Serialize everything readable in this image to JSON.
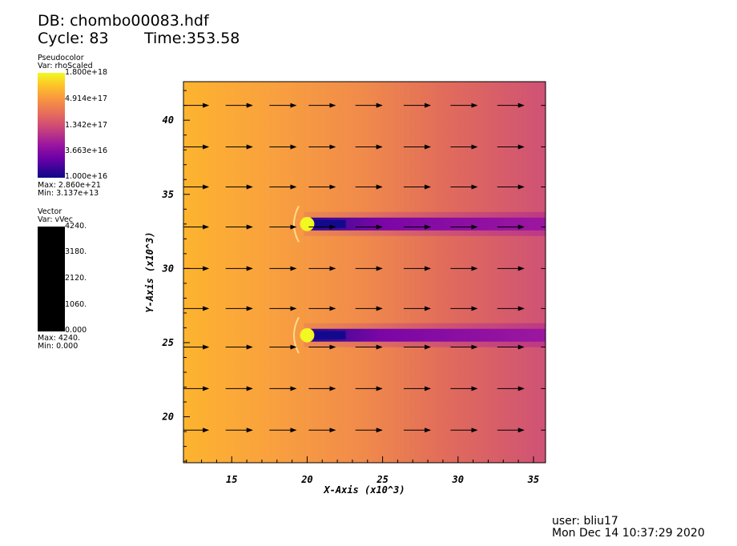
{
  "header": {
    "db_line": "DB: chombo00083.hdf",
    "cycle_line": "Cycle: 83",
    "time_line": "Time:353.58"
  },
  "pseudocolor_legend": {
    "title": "Pseudocolor",
    "var": "Var: rhoScaled",
    "ticks": [
      "1.800e+18",
      "4.914e+17",
      "1.342e+17",
      "3.663e+16",
      "1.000e+16"
    ],
    "max": "Max:  2.860e+21",
    "min": "Min:  3.137e+13"
  },
  "vector_legend": {
    "title": "Vector",
    "var": "Var: vVec",
    "ticks": [
      "4240.",
      "3180.",
      "2120.",
      "1060.",
      "0.000"
    ],
    "max": "Max:  4240.",
    "min": "Min:  0.000",
    "bar_color": "#000000"
  },
  "footer": {
    "user": "user: bliu17",
    "timestamp": "Mon Dec 14 10:37:29 2020"
  },
  "chart_data": {
    "type": "heatmap",
    "xlabel": "X-Axis (x10^3)",
    "ylabel": "Y-Axis (x10^3)",
    "xlim": [
      11.8,
      35.8
    ],
    "ylim": [
      16.9,
      42.6
    ],
    "x_ticks": [
      15,
      20,
      25,
      30,
      35
    ],
    "y_ticks": [
      20,
      25,
      30,
      35,
      40
    ],
    "colormap": [
      "#0d0887",
      "#7e03a8",
      "#cc4778",
      "#f89540",
      "#f0f921"
    ],
    "background_color": "#f9ad3a",
    "objects": [
      {
        "x": 20.0,
        "y": 33.0,
        "radius": 0.45,
        "color": "#f0f921"
      },
      {
        "x": 20.0,
        "y": 25.5,
        "radius": 0.45,
        "color": "#f0f921"
      }
    ],
    "vector_field": {
      "x": [
        11.7,
        14.6,
        17.5,
        20.1,
        23.2,
        26.4,
        29.5,
        32.6,
        35.5
      ],
      "y": [
        19.1,
        21.9,
        24.7,
        27.3,
        30.0,
        32.8,
        35.5,
        38.2,
        41.0
      ],
      "vx": 1.0,
      "vy": 0.0
    }
  }
}
